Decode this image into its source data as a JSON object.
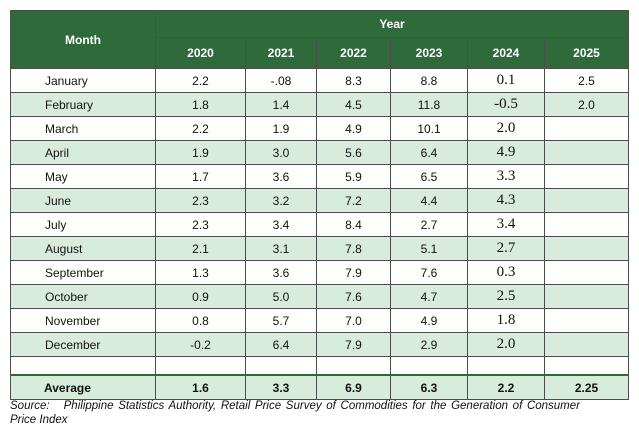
{
  "header": {
    "first_column": "Month",
    "column_group": "Year",
    "years": [
      "2020",
      "2021",
      "2022",
      "2023",
      "2024",
      "2025"
    ]
  },
  "rows": [
    {
      "month": "January",
      "values": [
        "2.2",
        "-.08",
        "8.3",
        "8.8",
        "0.1",
        "2.5"
      ]
    },
    {
      "month": "February",
      "values": [
        "1.8",
        "1.4",
        "4.5",
        "11.8",
        "-0.5",
        "2.0"
      ]
    },
    {
      "month": "March",
      "values": [
        "2.2",
        "1.9",
        "4.9",
        "10.1",
        "2.0"
      ]
    },
    {
      "month": "April",
      "values": [
        "1.9",
        "3.0",
        "5.6",
        "6.4",
        "4.9"
      ]
    },
    {
      "month": "May",
      "values": [
        "1.7",
        "3.6",
        "5.9",
        "6.5",
        "3.3"
      ]
    },
    {
      "month": "June",
      "values": [
        "2.3",
        "3.2",
        "7.2",
        "4.4",
        "4.3"
      ]
    },
    {
      "month": "July",
      "values": [
        "2.3",
        "3.4",
        "8.4",
        "2.7",
        "3.4"
      ]
    },
    {
      "month": "August",
      "values": [
        "2.1",
        "3.1",
        "7.8",
        "5.1",
        "2.7"
      ]
    },
    {
      "month": "September",
      "values": [
        "1.3",
        "3.6",
        "7.9",
        "7.6",
        "0.3"
      ]
    },
    {
      "month": "October",
      "values": [
        "0.9",
        "5.0",
        "7.6",
        "4.7",
        "2.5"
      ]
    },
    {
      "month": "November",
      "values": [
        "0.8",
        "5.7",
        "7.0",
        "4.9",
        "1.8"
      ]
    },
    {
      "month": "December",
      "values": [
        "-0.2",
        "6.4",
        "7.9",
        "2.9",
        "2.0"
      ]
    }
  ],
  "average": {
    "label": "Average",
    "values": [
      "1.6",
      "3.3",
      "6.9",
      "6.3",
      "2.2",
      "2.25"
    ]
  },
  "source": {
    "label": "Source:",
    "text": "Philippine Statistics Authority, Retail Price Survey of Commodities for the Generation of Consumer Price Index"
  }
}
